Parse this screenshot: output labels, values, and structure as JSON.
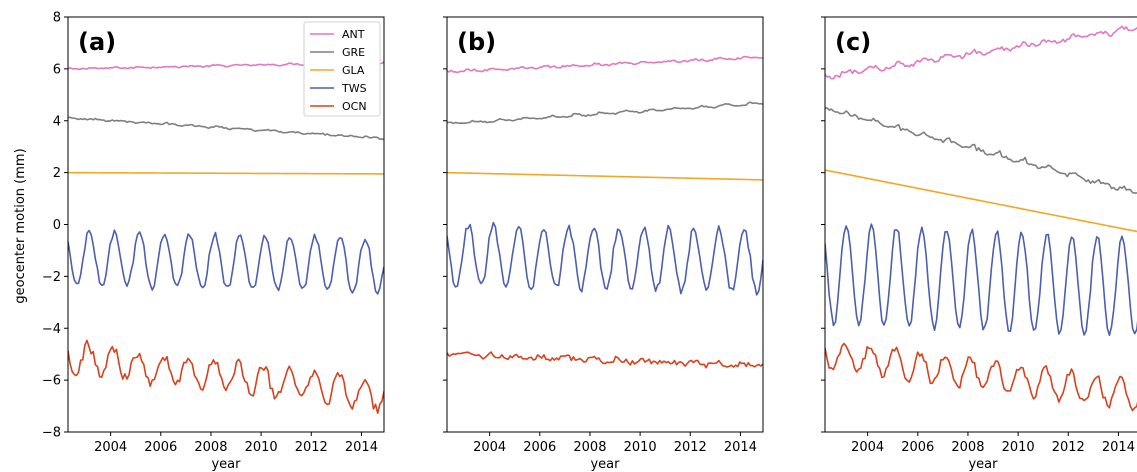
{
  "figure": {
    "ylabel": "geocenter motion (mm)",
    "xlabel": "year"
  },
  "chart_data": [
    {
      "type": "line",
      "panel_label": "(a)",
      "xlabel": "year",
      "ylabel": "geocenter motion (mm)",
      "xlim": [
        2002.3,
        2014.9
      ],
      "ylim": [
        -8,
        8
      ],
      "xticks": [
        2004,
        2006,
        2008,
        2010,
        2012,
        2014
      ],
      "yticks": [
        -8,
        -6,
        -4,
        -2,
        0,
        2,
        4,
        6,
        8
      ],
      "grid": false,
      "legend": "top-right",
      "series": [
        {
          "name": "ANT",
          "color": "#e377c2",
          "trend": [
            6.0,
            6.25
          ],
          "amp": 0.02,
          "noise": 0.03,
          "phase": 0.2
        },
        {
          "name": "GRE",
          "color": "#7f7f7f",
          "trend": [
            4.1,
            3.3
          ],
          "amp": 0.03,
          "noise": 0.03,
          "phase": 0.4,
          "step": true
        },
        {
          "name": "GLA",
          "color": "#f5a623",
          "trend": [
            2.0,
            1.95
          ],
          "amp": 0.0,
          "noise": 0.0,
          "phase": 0.0
        },
        {
          "name": "TWS",
          "color": "#4c5fb0",
          "trend": [
            -1.3,
            -1.6
          ],
          "amp": 1.05,
          "noise": 0.12,
          "phase": 0.15
        },
        {
          "name": "OCN",
          "color": "#d9411e",
          "trend": [
            -5.1,
            -6.6
          ],
          "amp": 0.55,
          "noise": 0.22,
          "phase": 0.1
        }
      ]
    },
    {
      "type": "line",
      "panel_label": "(b)",
      "xlabel": "year",
      "ylabel": "",
      "xlim": [
        2002.3,
        2014.9
      ],
      "ylim": [
        -8,
        8
      ],
      "xticks": [
        2004,
        2006,
        2008,
        2010,
        2012,
        2014
      ],
      "yticks": [
        -8,
        -6,
        -4,
        -2,
        0,
        2,
        4,
        6,
        8
      ],
      "grid": false,
      "series": [
        {
          "name": "ANT",
          "color": "#e377c2",
          "trend": [
            5.9,
            6.45
          ],
          "amp": 0.03,
          "noise": 0.04,
          "phase": 0.2
        },
        {
          "name": "GRE",
          "color": "#7f7f7f",
          "trend": [
            3.9,
            4.7
          ],
          "amp": 0.03,
          "noise": 0.03,
          "phase": 0.4,
          "step": true
        },
        {
          "name": "GLA",
          "color": "#f5a623",
          "trend": [
            2.0,
            1.72
          ],
          "amp": 0.0,
          "noise": 0.0,
          "phase": 0.0
        },
        {
          "name": "TWS",
          "color": "#4c5fb0",
          "trend": [
            -1.2,
            -1.4
          ],
          "amp": 1.2,
          "noise": 0.15,
          "phase": 0.15
        },
        {
          "name": "OCN",
          "color": "#d9411e",
          "trend": [
            -5.0,
            -5.45
          ],
          "amp": 0.06,
          "noise": 0.1,
          "phase": 0.1
        }
      ]
    },
    {
      "type": "line",
      "panel_label": "(c)",
      "xlabel": "year",
      "ylabel": "",
      "xlim": [
        2002.3,
        2014.9
      ],
      "ylim": [
        -8,
        8
      ],
      "xticks": [
        2004,
        2006,
        2008,
        2010,
        2012,
        2014
      ],
      "yticks": [
        -8,
        -6,
        -4,
        -2,
        0,
        2,
        4,
        6,
        8
      ],
      "grid": false,
      "series": [
        {
          "name": "ANT",
          "color": "#e377c2",
          "trend": [
            5.7,
            7.6
          ],
          "amp": 0.08,
          "noise": 0.08,
          "phase": 0.2
        },
        {
          "name": "GRE",
          "color": "#7f7f7f",
          "trend": [
            4.4,
            1.1
          ],
          "amp": 0.08,
          "noise": 0.06,
          "phase": 0.4,
          "step": true
        },
        {
          "name": "GLA",
          "color": "#f5a623",
          "trend": [
            2.1,
            -0.3
          ],
          "amp": 0.0,
          "noise": 0.0,
          "phase": 0.0
        },
        {
          "name": "TWS",
          "color": "#4c5fb0",
          "trend": [
            -1.9,
            -2.4
          ],
          "amp": 1.9,
          "noise": 0.12,
          "phase": 0.15
        },
        {
          "name": "OCN",
          "color": "#d9411e",
          "trend": [
            -5.0,
            -6.6
          ],
          "amp": 0.55,
          "noise": 0.15,
          "phase": 0.1
        }
      ]
    }
  ]
}
